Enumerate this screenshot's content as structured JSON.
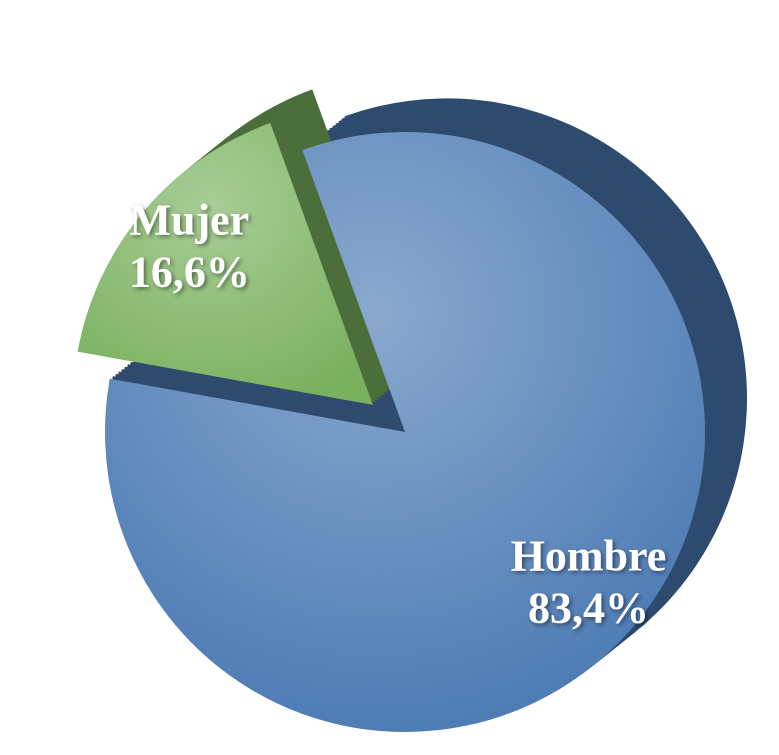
{
  "chart_data": {
    "type": "pie",
    "categories": [
      "Hombre",
      "Mujer"
    ],
    "values": [
      83.4,
      16.6
    ],
    "value_labels": [
      "83,4%",
      "16,6%"
    ],
    "colors": [
      "#4a79b3",
      "#79b15e"
    ]
  }
}
